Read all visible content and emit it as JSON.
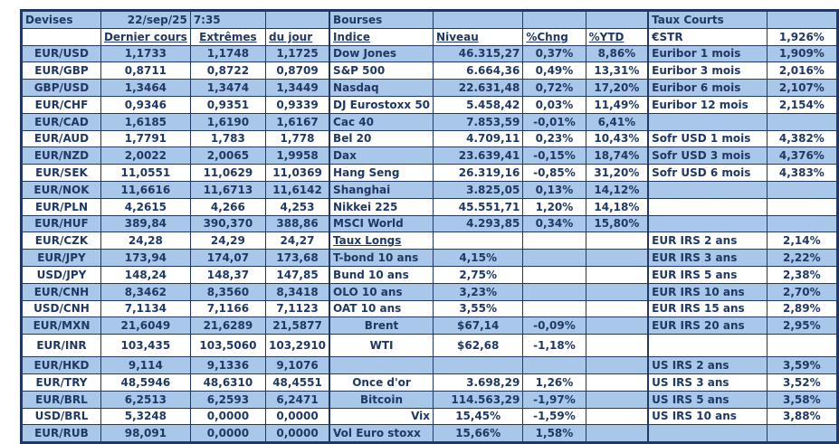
{
  "colors": {
    "row_blue": "#A9C7E9",
    "label_text": "#1F3864",
    "value_text": "#3939A5",
    "border": "#1F3864"
  },
  "left": {
    "title": "Devises",
    "date": "22/sep/25",
    "time": "7:35",
    "columns": [
      "Dernier cours",
      "Extrêmes",
      "du jour"
    ],
    "rows": [
      {
        "pair": "EUR/USD",
        "dernier": "1,1733",
        "extremes": "1,1748",
        "du_jour": "1,1725"
      },
      {
        "pair": "EUR/GBP",
        "dernier": "0,8711",
        "extremes": "0,8722",
        "du_jour": "0,8709"
      },
      {
        "pair": "GBP/USD",
        "dernier": "1,3464",
        "extremes": "1,3474",
        "du_jour": "1,3449"
      },
      {
        "pair": "EUR/CHF",
        "dernier": "0,9346",
        "extremes": "0,9351",
        "du_jour": "0,9339"
      },
      {
        "pair": "EUR/CAD",
        "dernier": "1,6185",
        "extremes": "1,6190",
        "du_jour": "1,6167"
      },
      {
        "pair": "EUR/AUD",
        "dernier": "1,7791",
        "extremes": "1,783",
        "du_jour": "1,778"
      },
      {
        "pair": "EUR/NZD",
        "dernier": "2,0022",
        "extremes": "2,0065",
        "du_jour": "1,9958"
      },
      {
        "pair": "EUR/SEK",
        "dernier": "11,0551",
        "extremes": "11,0629",
        "du_jour": "11,0369"
      },
      {
        "pair": "EUR/NOK",
        "dernier": "11,6616",
        "extremes": "11,6713",
        "du_jour": "11,6142"
      },
      {
        "pair": "EUR/PLN",
        "dernier": "4,2615",
        "extremes": "4,266",
        "du_jour": "4,253"
      },
      {
        "pair": "EUR/HUF",
        "dernier": "389,84",
        "extremes": "390,370",
        "du_jour": "388,86"
      },
      {
        "pair": "EUR/CZK",
        "dernier": "24,28",
        "extremes": "24,29",
        "du_jour": "24,27"
      },
      {
        "pair": "EUR/JPY",
        "dernier": "173,94",
        "extremes": "174,07",
        "du_jour": "173,68"
      },
      {
        "pair": "USD/JPY",
        "dernier": "148,24",
        "extremes": "148,37",
        "du_jour": "147,85"
      },
      {
        "pair": "EUR/CNH",
        "dernier": "8,3462",
        "extremes": "8,3560",
        "du_jour": "8,3418"
      },
      {
        "pair": "USD/CNH",
        "dernier": "7,1134",
        "extremes": "7,1166",
        "du_jour": "7,1123"
      },
      {
        "pair": "EUR/MXN",
        "dernier": "21,6049",
        "extremes": "21,6289",
        "du_jour": "21,5877"
      },
      {
        "pair": "EUR/INR",
        "dernier": "103,435",
        "extremes": "103,5060",
        "du_jour": "103,2910"
      },
      {
        "pair": "EUR/HKD",
        "dernier": "9,114",
        "extremes": "9,1336",
        "du_jour": "9,1076"
      },
      {
        "pair": "EUR/TRY",
        "dernier": "48,5946",
        "extremes": "48,6310",
        "du_jour": "48,4551"
      },
      {
        "pair": "EUR/BRL",
        "dernier": "6,2513",
        "extremes": "6,2593",
        "du_jour": "6,2471"
      },
      {
        "pair": "USD/BRL",
        "dernier": "5,3248",
        "extremes": "0,0000",
        "du_jour": "0,0000"
      },
      {
        "pair": "EUR/RUB",
        "dernier": "98,091",
        "extremes": "0,0000",
        "du_jour": "0,0000"
      }
    ]
  },
  "middle": {
    "title": "Bourses",
    "columns": [
      "Indice",
      "Niveau",
      "%Chng",
      "%YTD"
    ],
    "rows": [
      {
        "type": "index",
        "label": "Dow Jones",
        "niveau": "46.315,27",
        "chng": "0,37%",
        "ytd": "8,86%"
      },
      {
        "type": "index",
        "label": "S&P 500",
        "niveau": "6.664,36",
        "chng": "0,49%",
        "ytd": "13,31%"
      },
      {
        "type": "index",
        "label": "Nasdaq",
        "niveau": "22.631,48",
        "chng": "0,72%",
        "ytd": "17,20%"
      },
      {
        "type": "index",
        "label": "DJ Eurostoxx 50",
        "niveau": "5.458,42",
        "chng": "0,03%",
        "ytd": "11,49%"
      },
      {
        "type": "index",
        "label": "Cac 40",
        "niveau": "7.853,59",
        "chng": "-0,01%",
        "ytd": "6,41%"
      },
      {
        "type": "index",
        "label": "Bel 20",
        "niveau": "4.709,11",
        "chng": "0,23%",
        "ytd": "10,43%"
      },
      {
        "type": "index",
        "label": "Dax",
        "niveau": "23.639,41",
        "chng": "-0,15%",
        "ytd": "18,74%"
      },
      {
        "type": "index",
        "label": "Hang Seng",
        "niveau": "26.319,16",
        "chng": "-0,85%",
        "ytd": "31,20%"
      },
      {
        "type": "index",
        "label": "Shanghai",
        "niveau": "3.825,05",
        "chng": "0,13%",
        "ytd": "14,12%"
      },
      {
        "type": "index",
        "label": "Nikkei 225",
        "niveau": "45.551,71",
        "chng": "1,20%",
        "ytd": "14,18%"
      },
      {
        "type": "index",
        "label": "MSCI World",
        "niveau": "4.293,85",
        "chng": "0,34%",
        "ytd": "15,80%"
      },
      {
        "type": "section",
        "label": "Taux Longs"
      },
      {
        "type": "rate",
        "label": "T-bond 10 ans",
        "niveau": "4,15%",
        "chng": "",
        "label_align": "left"
      },
      {
        "type": "rate",
        "label": "Bund 10 ans",
        "niveau": "2,75%",
        "chng": "",
        "label_align": "left"
      },
      {
        "type": "rate",
        "label": "OLO 10 ans",
        "niveau": "3,23%",
        "chng": "",
        "label_align": "left"
      },
      {
        "type": "rate",
        "label": "OAT 10 ans",
        "niveau": "3,55%",
        "chng": "",
        "label_align": "left"
      },
      {
        "type": "rate",
        "label": "Brent",
        "niveau": "$67,14",
        "chng": "-0,09%",
        "label_align": "center"
      },
      {
        "type": "rate",
        "label": "WTI",
        "niveau": "$62,68",
        "chng": "-1,18%",
        "label_align": "center"
      },
      {
        "type": "blank"
      },
      {
        "type": "other",
        "label": "Once d'or",
        "niveau": "3.698,29",
        "chng": "1,26%",
        "label_align": "center",
        "value_align": "right"
      },
      {
        "type": "other",
        "label": "Bitcoin",
        "niveau": "114.563,29",
        "chng": "-1,97%",
        "label_align": "center",
        "value_align": "right"
      },
      {
        "type": "other",
        "label": "Vix",
        "niveau": "15,45%",
        "chng": "-1,59%",
        "label_align": "right",
        "value_align": "center"
      },
      {
        "type": "other",
        "label": "Vol Euro stoxx",
        "niveau": "15,66%",
        "chng": "1,58%",
        "label_align": "left",
        "value_align": "center"
      }
    ]
  },
  "right": {
    "title": "Taux Courts",
    "rows": [
      {
        "label": "€STR",
        "value": "1,926%"
      },
      {
        "label": "Euribor 1 mois",
        "value": "1,909%"
      },
      {
        "label": "Euribor 3 mois",
        "value": "2,016%"
      },
      {
        "label": "Euribor 6 mois",
        "value": "2,107%"
      },
      {
        "label": "Euribor 12 mois",
        "value": "2,154%"
      },
      {
        "label": "",
        "value": ""
      },
      {
        "label": "Sofr USD 1 mois",
        "value": "4,382%"
      },
      {
        "label": "Sofr USD 3 mois",
        "value": "4,376%"
      },
      {
        "label": "Sofr USD 6 mois",
        "value": "4,383%"
      },
      {
        "label": "",
        "value": ""
      },
      {
        "label": "",
        "value": ""
      },
      {
        "label": "",
        "value": ""
      },
      {
        "label": "EUR IRS 2 ans",
        "value": "2,14%"
      },
      {
        "label": "EUR IRS 3 ans",
        "value": "2,22%"
      },
      {
        "label": "EUR IRS 5 ans",
        "value": "2,38%"
      },
      {
        "label": "EUR IRS 10 ans",
        "value": "2,70%"
      },
      {
        "label": "EUR IRS 15 ans",
        "value": "2,89%"
      },
      {
        "label": "EUR IRS 20 ans",
        "value": "2,95%"
      },
      {
        "label": "",
        "value": ""
      },
      {
        "label": "US IRS 2 ans",
        "value": "3,59%"
      },
      {
        "label": "US IRS 3 ans",
        "value": "3,52%"
      },
      {
        "label": "US IRS 5 ans",
        "value": "3,58%"
      },
      {
        "label": "US IRS 10 ans",
        "value": "3,88%"
      },
      {
        "label": "",
        "value": ""
      }
    ]
  }
}
